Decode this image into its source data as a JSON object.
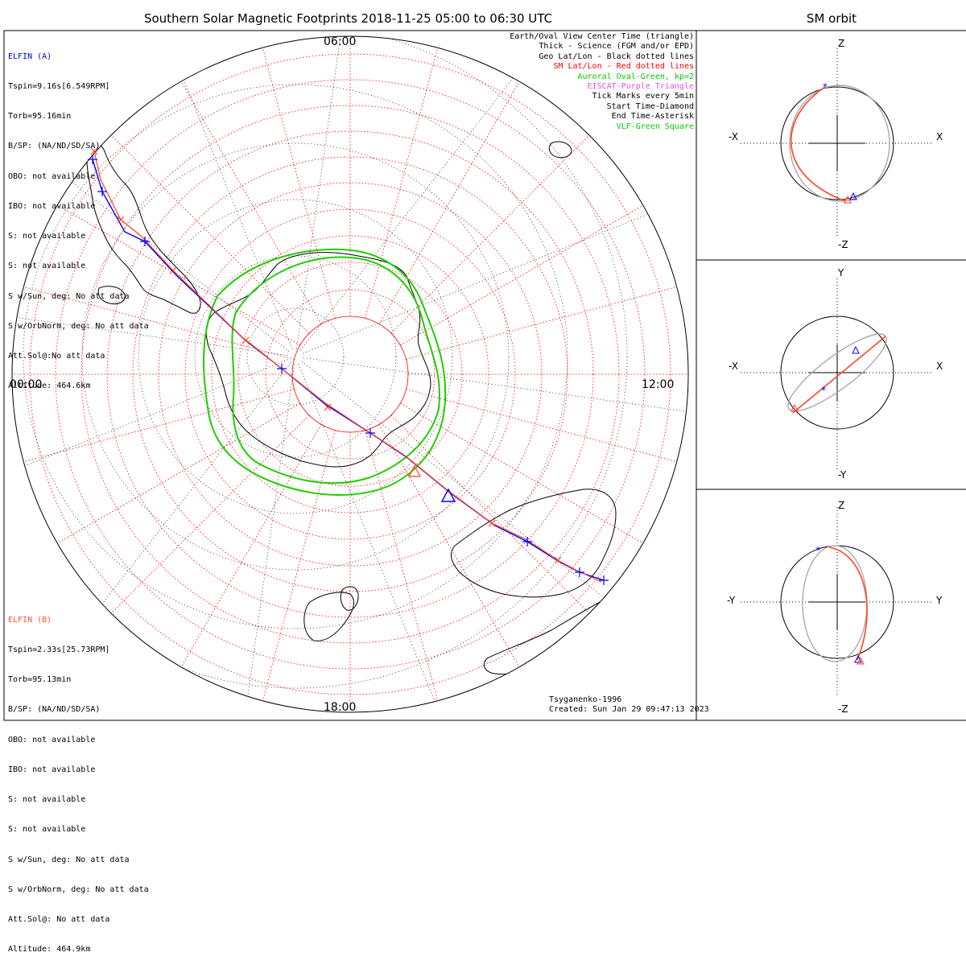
{
  "title": "Southern Solar Magnetic Footprints 2018-11-25 05:00 to 06:30 UTC",
  "side_title": "SM orbit",
  "local_time_labels": {
    "top": "06:00",
    "left": "00:00",
    "right": "12:00",
    "bottom": "18:00"
  },
  "legend": [
    {
      "text": "Earth/Oval View Center Time (triangle)",
      "color": "#000000"
    },
    {
      "text": "Thick - Science (FGM and/or EPD)",
      "color": "#000000"
    },
    {
      "text": "Geo Lat/Lon - Black dotted lines",
      "color": "#000000"
    },
    {
      "text": "SM Lat/Lon - Red dotted lines",
      "color": "#ff0000"
    },
    {
      "text": "Auroral Oval-Green, kp=2",
      "color": "#00cc00"
    },
    {
      "text": "EISCAT-Purple Triangle",
      "color": "#dd55dd"
    },
    {
      "text": "Tick Marks every 5min",
      "color": "#000000"
    },
    {
      "text": "Start Time-Diamond",
      "color": "#000000"
    },
    {
      "text": "End Time-Asterisk",
      "color": "#000000"
    },
    {
      "text": "VLF-Green Square",
      "color": "#00cc00"
    }
  ],
  "probe_a": {
    "name": "ELFIN (A)",
    "color": "#0000cc",
    "lines": [
      "Tspin=9.16s[6.549RPM]",
      "Torb=95.16min",
      "B/SP: (NA/ND/SD/SA)",
      "OBO: not available",
      "IBO: not available",
      "S: not available",
      "S: not available",
      "S w/Sun, deg: No att data",
      "S w/OrbNorm, deg: No att data",
      "Att.Sol@:No att data",
      "Altitude: 464.6km"
    ]
  },
  "probe_b": {
    "name": "ELFIN (B)",
    "color": "#ff5533",
    "lines": [
      "Tspin=2.33s[25.73RPM]",
      "Torb=95.13min",
      "B/SP: (NA/ND/SD/SA)",
      "OBO: not available",
      "IBO: not available",
      "S: not available",
      "S: not available",
      "S w/Sun, deg: No att data",
      "S w/OrbNorm, deg: No att data",
      "Att.Sol@: No att data",
      "Altitude: 464.9km"
    ]
  },
  "credit": {
    "model": "Tsyganenko-1996",
    "created": "Created: Sun Jan 29 09:47:13 2023"
  },
  "panels": [
    {
      "name": "xz",
      "top": "Z",
      "bottom": "-Z",
      "left": "-X",
      "right": "X"
    },
    {
      "name": "xy",
      "top": "Y",
      "bottom": "-Y",
      "left": "-X",
      "right": "X"
    },
    {
      "name": "yz",
      "top": "Z",
      "bottom": "-Z",
      "left": "-Y",
      "right": "Y"
    }
  ],
  "colors": {
    "orbit_a": "#0000ff",
    "orbit_b": "#ff4422",
    "oval": "#22cc00",
    "grid_sm": "#ff0000",
    "grid_geo": "#000000",
    "eiscat": "#dd55dd"
  }
}
